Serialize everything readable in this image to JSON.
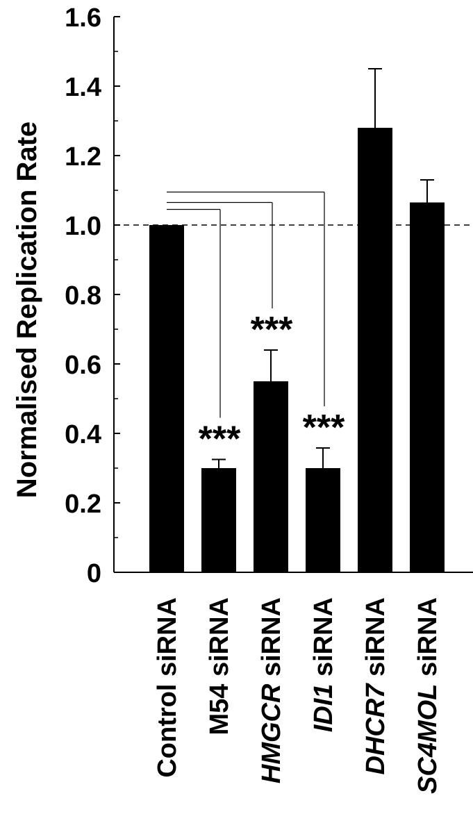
{
  "chart_data": {
    "type": "bar",
    "title": "",
    "xlabel": "",
    "ylabel": "Normalised Replication Rate",
    "ylim": [
      0,
      1.6
    ],
    "yticks": [
      {
        "value": 0,
        "label": "0"
      },
      {
        "value": 0.2,
        "label": "0.2"
      },
      {
        "value": 0.4,
        "label": "0.4"
      },
      {
        "value": 0.6,
        "label": "0.6"
      },
      {
        "value": 0.8,
        "label": "0.8"
      },
      {
        "value": 1.0,
        "label": "1.0"
      },
      {
        "value": 1.2,
        "label": "1.2"
      },
      {
        "value": 1.4,
        "label": "1.4"
      },
      {
        "value": 1.6,
        "label": "1.6"
      }
    ],
    "minor_ticks": [
      0.1,
      0.3,
      0.5,
      0.7,
      0.9,
      1.1,
      1.3,
      1.5
    ],
    "reference_line": 1.0,
    "grid": false,
    "bar_color": "#000000",
    "categories": [
      {
        "name": "Control",
        "suffix": " siRNA",
        "italic": false,
        "value": 1.0,
        "error": 0,
        "sig": ""
      },
      {
        "name": "M54",
        "suffix": " siRNA",
        "italic": false,
        "value": 0.3,
        "error": 0.025,
        "sig": "***"
      },
      {
        "name": "HMGCR",
        "suffix": " siRNA",
        "italic": true,
        "value": 0.55,
        "error": 0.09,
        "sig": "***"
      },
      {
        "name": "IDI1",
        "suffix": " siRNA",
        "italic": true,
        "value": 0.3,
        "error": 0.058,
        "sig": "***"
      },
      {
        "name": "DHCR7",
        "suffix": " siRNA",
        "italic": true,
        "value": 1.28,
        "error": 0.17,
        "sig": ""
      },
      {
        "name": "SC4MOL",
        "suffix": " siRNA",
        "italic": true,
        "value": 1.065,
        "error": 0.065,
        "sig": ""
      }
    ],
    "comparisons": [
      {
        "from": 0,
        "to": 1,
        "y": 1.045
      },
      {
        "from": 0,
        "to": 2,
        "y": 1.065
      },
      {
        "from": 0,
        "to": 3,
        "y": 1.095
      }
    ]
  }
}
